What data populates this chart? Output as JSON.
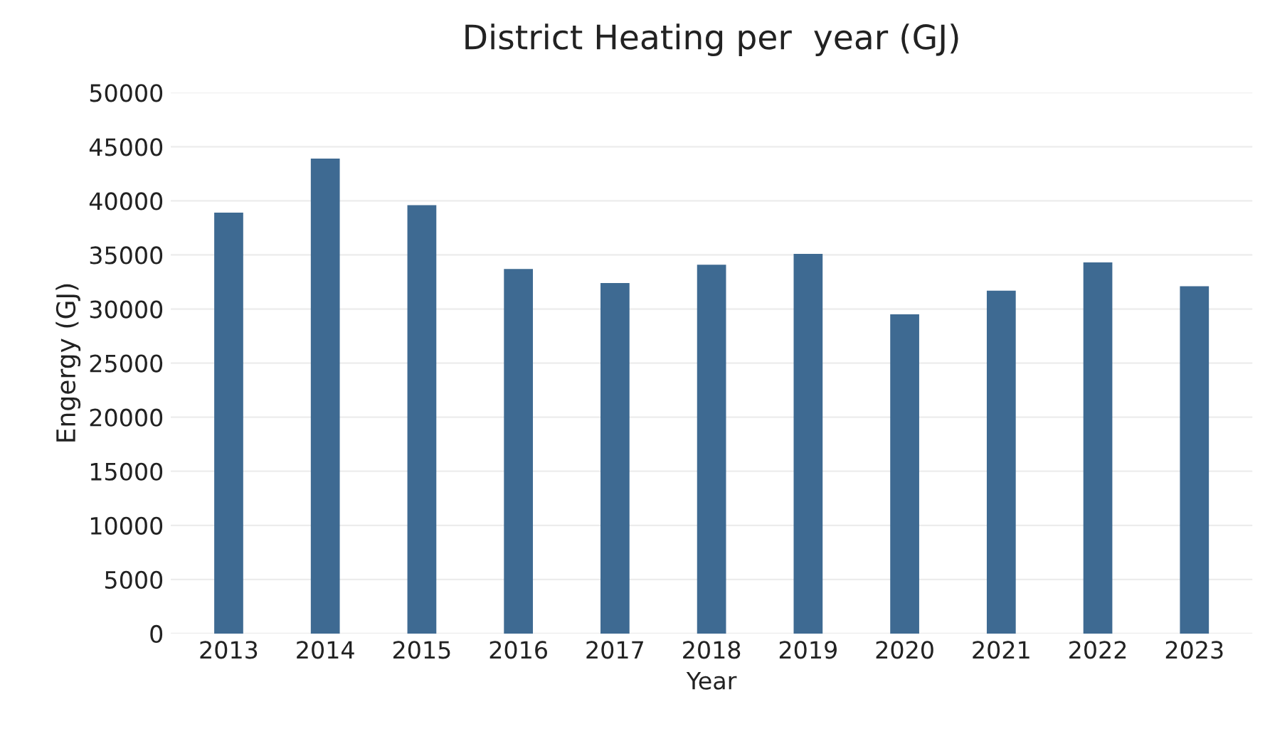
{
  "chart_data": {
    "type": "bar",
    "title": "District Heating per  year (GJ)",
    "xlabel": "Year",
    "ylabel": "Engergy (GJ)",
    "categories": [
      "2013",
      "2014",
      "2015",
      "2016",
      "2017",
      "2018",
      "2019",
      "2020",
      "2021",
      "2022",
      "2023"
    ],
    "series": [
      {
        "color": "#3e6a92",
        "values": [
          38900,
          43900,
          39600,
          33700,
          32400,
          34100,
          35100,
          29500,
          31700,
          34300,
          32100
        ]
      }
    ],
    "ylim": [
      0,
      50000
    ],
    "yticks": [
      0,
      5000,
      10000,
      15000,
      20000,
      25000,
      30000,
      35000,
      40000,
      45000,
      50000
    ],
    "grid": "y",
    "legend": false
  }
}
